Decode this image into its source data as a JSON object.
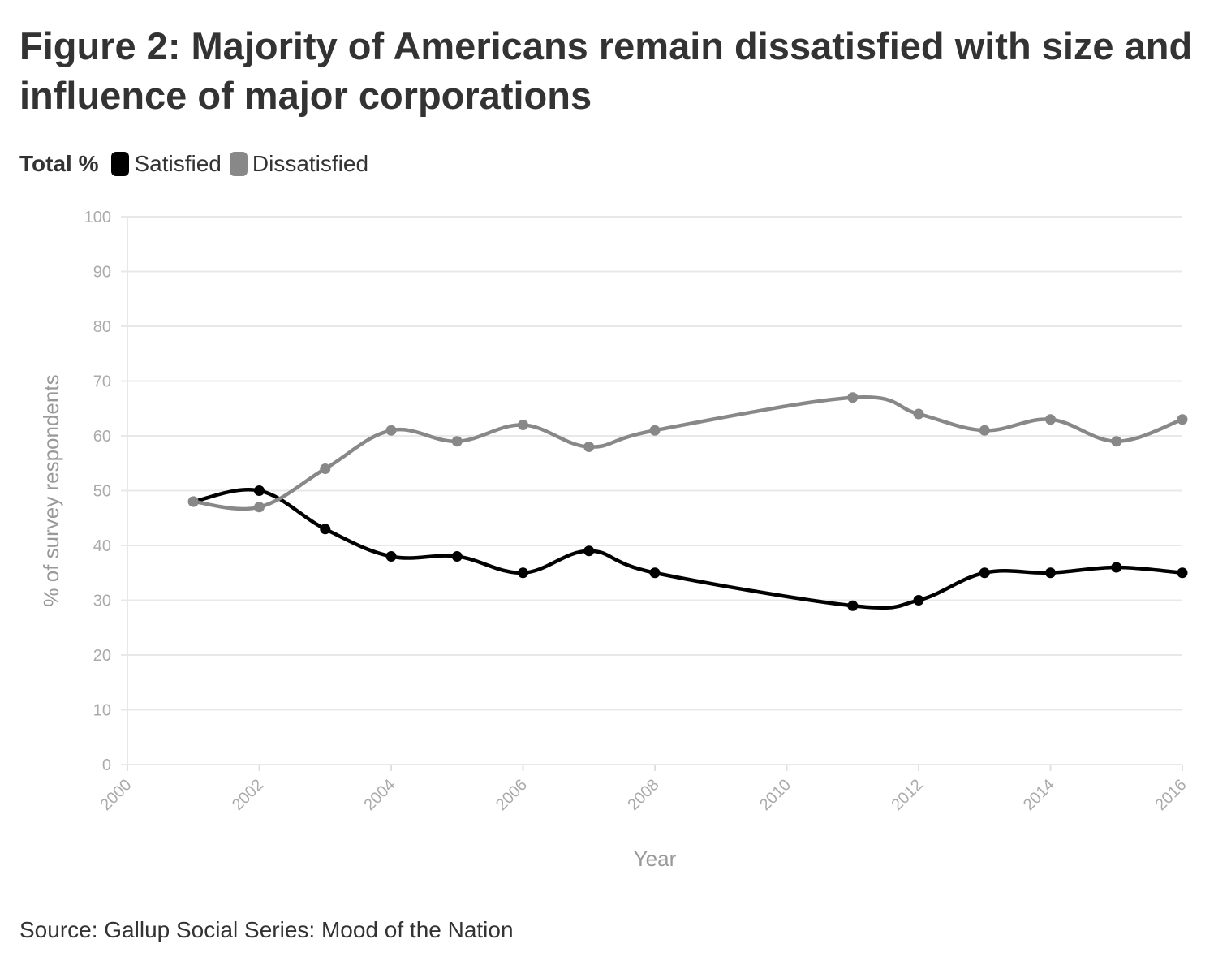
{
  "title": "Figure 2: Majority of Americans remain dissatisfied with size and influence of major corporations",
  "source": "Source: Gallup Social Series: Mood of the Nation",
  "chart_data": {
    "type": "line",
    "title": "Figure 2: Majority of Americans remain dissatisfied with size and influence of major corporations",
    "legend_title": "Total %",
    "legend_position": "top-left",
    "xlabel": "Year",
    "ylabel": "% of survey respondents",
    "xlim": [
      2000,
      2016
    ],
    "ylim": [
      0,
      100
    ],
    "x_ticks": [
      "2000",
      "2002",
      "2004",
      "2006",
      "2008",
      "2010",
      "2012",
      "2014",
      "2016"
    ],
    "y_ticks": [
      "0",
      "10",
      "20",
      "30",
      "40",
      "50",
      "60",
      "70",
      "80",
      "90",
      "100"
    ],
    "grid": true,
    "x": [
      2001,
      2002,
      2003,
      2004,
      2005,
      2006,
      2007,
      2008,
      2011,
      2012,
      2013,
      2014,
      2015,
      2016
    ],
    "series": [
      {
        "name": "Satisfied",
        "color": "#000000",
        "values": [
          48,
          50,
          43,
          38,
          38,
          35,
          39,
          35,
          29,
          30,
          35,
          35,
          36,
          35
        ]
      },
      {
        "name": "Dissatisfied",
        "color": "#888888",
        "values": [
          48,
          47,
          54,
          61,
          59,
          62,
          58,
          61,
          67,
          64,
          61,
          63,
          59,
          63
        ]
      }
    ]
  }
}
